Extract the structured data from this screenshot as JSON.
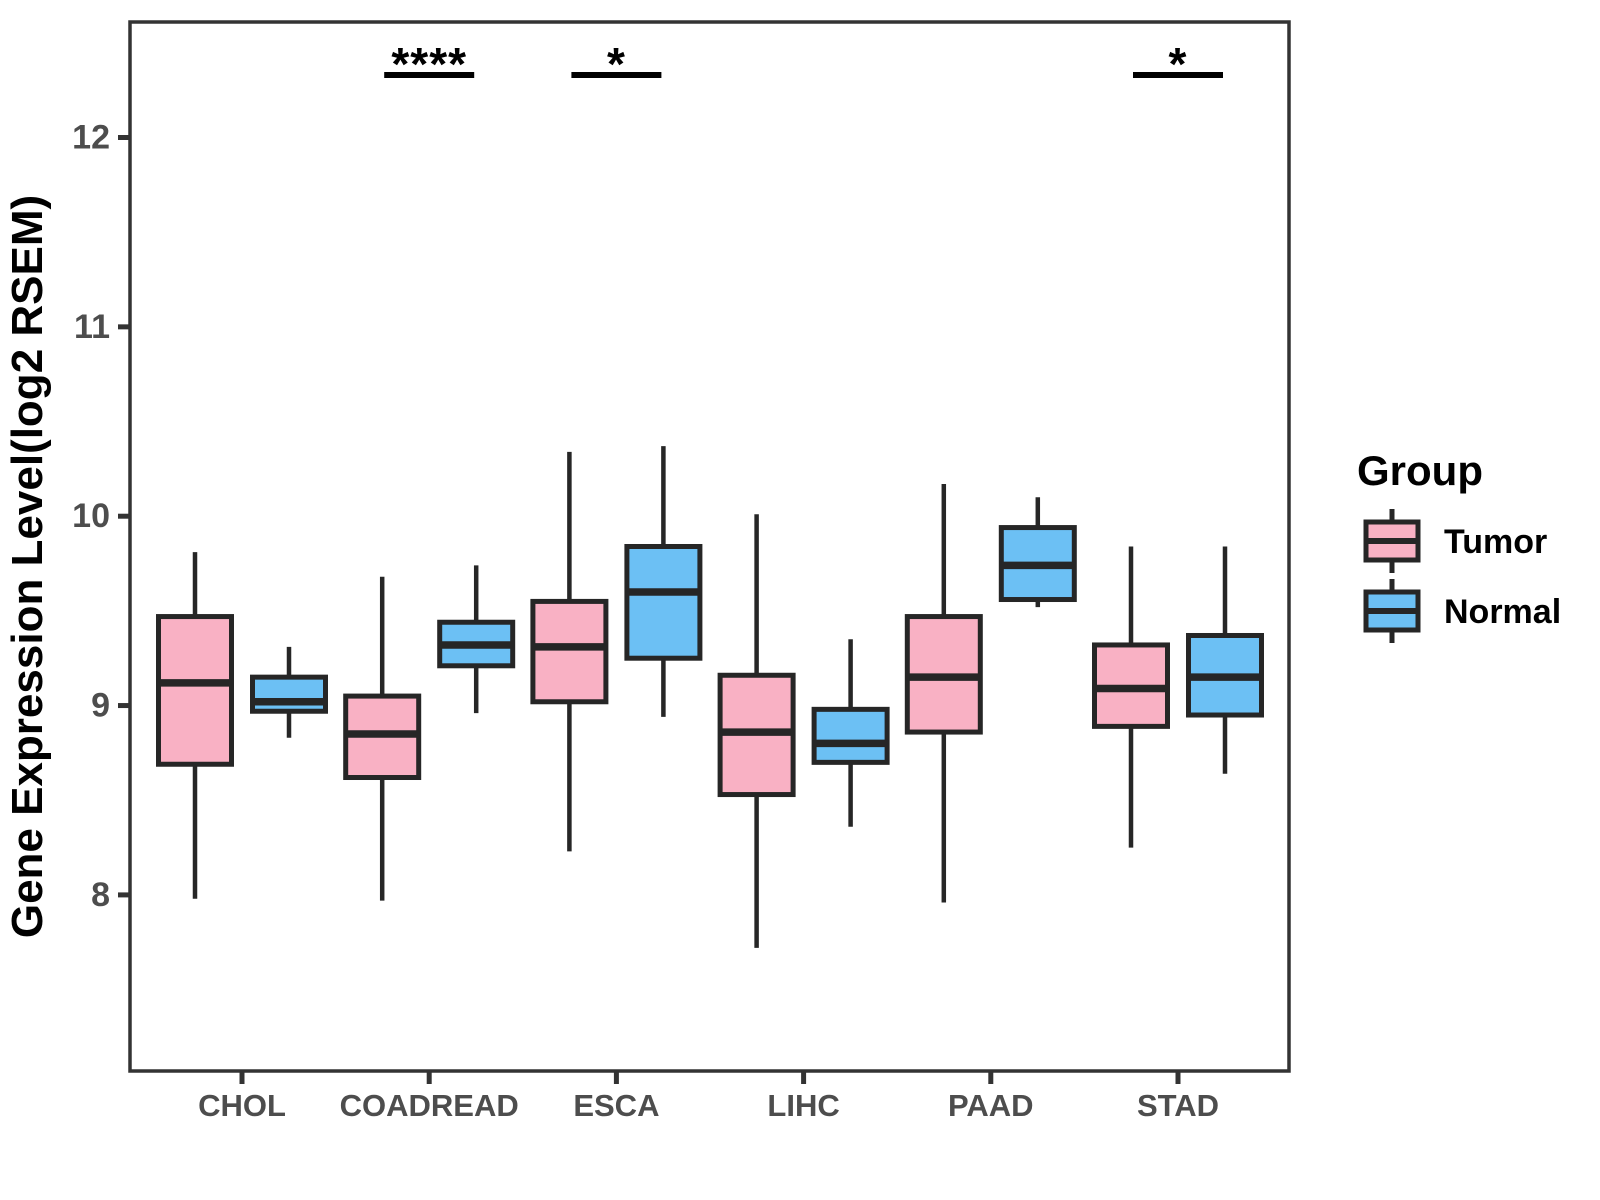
{
  "chart_data": {
    "type": "boxplot",
    "title": "",
    "xlabel": "",
    "ylabel": "Gene Expression Level(log2 RSEM)",
    "categories": [
      "CHOL",
      "COADREAD",
      "ESCA",
      "LIHC",
      "PAAD",
      "STAD"
    ],
    "y_ticks": [
      8,
      9,
      10,
      11,
      12
    ],
    "ylim": [
      7.07,
      12.61
    ],
    "grid": false,
    "legend_position": "right",
    "legend": {
      "title": "Group",
      "items": [
        {
          "label": "Tumor",
          "color": "#F9B1C4"
        },
        {
          "label": "Normal",
          "color": "#6CC0F4"
        }
      ]
    },
    "series": [
      {
        "name": "Tumor",
        "color": "#F9B1C4",
        "boxes": [
          {
            "category": "CHOL",
            "low": 7.98,
            "q1": 8.69,
            "median": 9.12,
            "q3": 9.47,
            "high": 9.81
          },
          {
            "category": "COADREAD",
            "low": 7.97,
            "q1": 8.62,
            "median": 8.85,
            "q3": 9.05,
            "high": 9.68
          },
          {
            "category": "ESCA",
            "low": 8.23,
            "q1": 9.02,
            "median": 9.31,
            "q3": 9.55,
            "high": 10.34
          },
          {
            "category": "LIHC",
            "low": 7.72,
            "q1": 8.53,
            "median": 8.86,
            "q3": 9.16,
            "high": 10.01
          },
          {
            "category": "PAAD",
            "low": 7.96,
            "q1": 8.86,
            "median": 9.15,
            "q3": 9.47,
            "high": 10.17
          },
          {
            "category": "STAD",
            "low": 8.25,
            "q1": 8.89,
            "median": 9.09,
            "q3": 9.32,
            "high": 9.84
          }
        ]
      },
      {
        "name": "Normal",
        "color": "#6CC0F4",
        "boxes": [
          {
            "category": "CHOL",
            "low": 8.83,
            "q1": 8.97,
            "median": 9.02,
            "q3": 9.15,
            "high": 9.31
          },
          {
            "category": "COADREAD",
            "low": 8.96,
            "q1": 9.21,
            "median": 9.32,
            "q3": 9.44,
            "high": 9.74
          },
          {
            "category": "ESCA",
            "low": 8.94,
            "q1": 9.25,
            "median": 9.6,
            "q3": 9.84,
            "high": 10.37
          },
          {
            "category": "LIHC",
            "low": 8.36,
            "q1": 8.7,
            "median": 8.8,
            "q3": 8.98,
            "high": 9.35
          },
          {
            "category": "PAAD",
            "low": 9.52,
            "q1": 9.56,
            "median": 9.74,
            "q3": 9.94,
            "high": 10.1
          },
          {
            "category": "STAD",
            "low": 8.64,
            "q1": 8.95,
            "median": 9.15,
            "q3": 9.37,
            "high": 9.84
          }
        ]
      }
    ],
    "significance": [
      {
        "category": "COADREAD",
        "label": "****"
      },
      {
        "category": "ESCA",
        "label": "*"
      },
      {
        "category": "STAD",
        "label": "*"
      }
    ],
    "colors": {
      "box_stroke": "#262626",
      "axis_text": "#4D4D4D",
      "axis_line": "#333333",
      "annotation": "#000000",
      "panel_bg": "#FFFFFF"
    }
  }
}
